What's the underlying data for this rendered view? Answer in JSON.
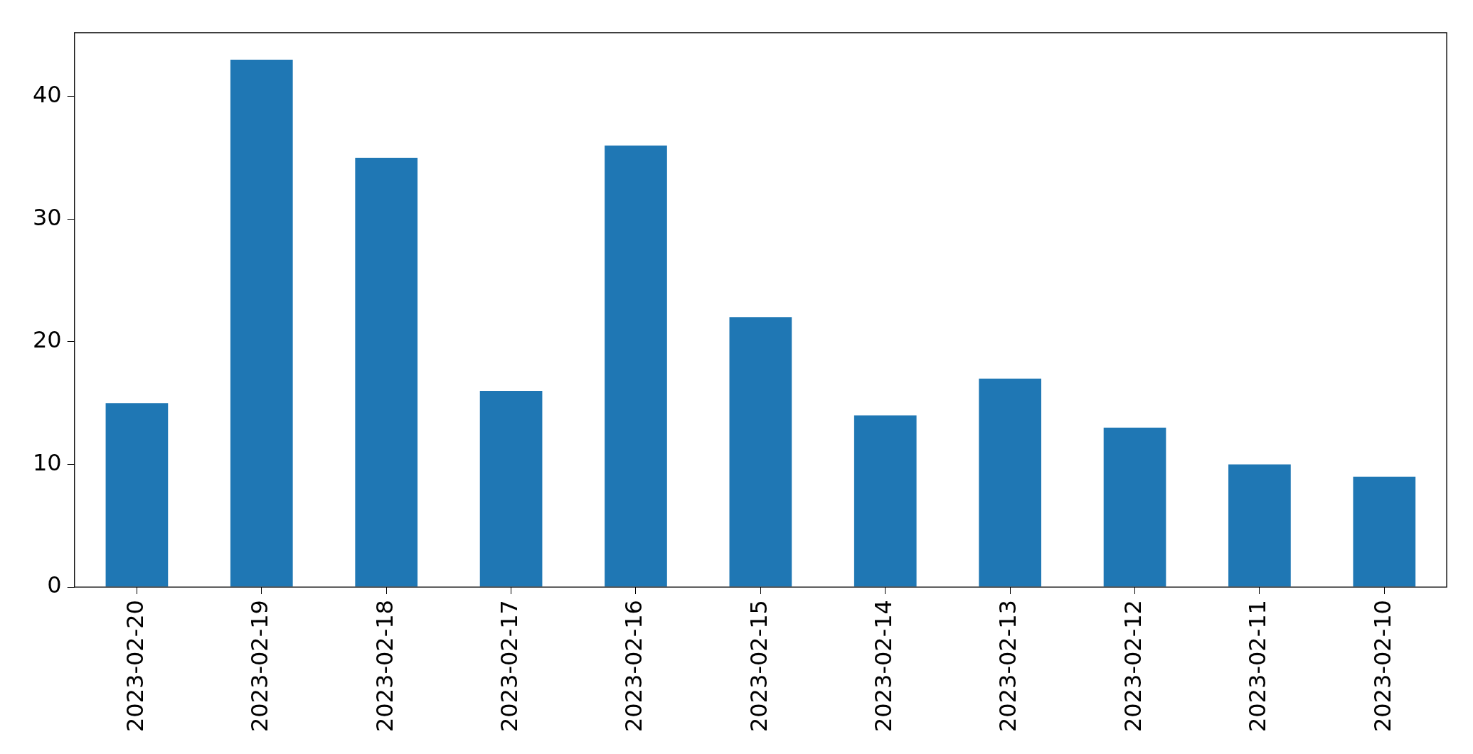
{
  "chart_data": {
    "type": "bar",
    "categories": [
      "2023-02-20",
      "2023-02-19",
      "2023-02-18",
      "2023-02-17",
      "2023-02-16",
      "2023-02-15",
      "2023-02-14",
      "2023-02-13",
      "2023-02-12",
      "2023-02-11",
      "2023-02-10"
    ],
    "values": [
      15,
      43,
      35,
      16,
      36,
      22,
      14,
      17,
      13,
      10,
      9
    ],
    "color": "#1f77b4",
    "ylim": [
      0,
      45.2
    ],
    "yticks": [
      0,
      10,
      20,
      30,
      40
    ],
    "grid": false,
    "legend": false
  }
}
